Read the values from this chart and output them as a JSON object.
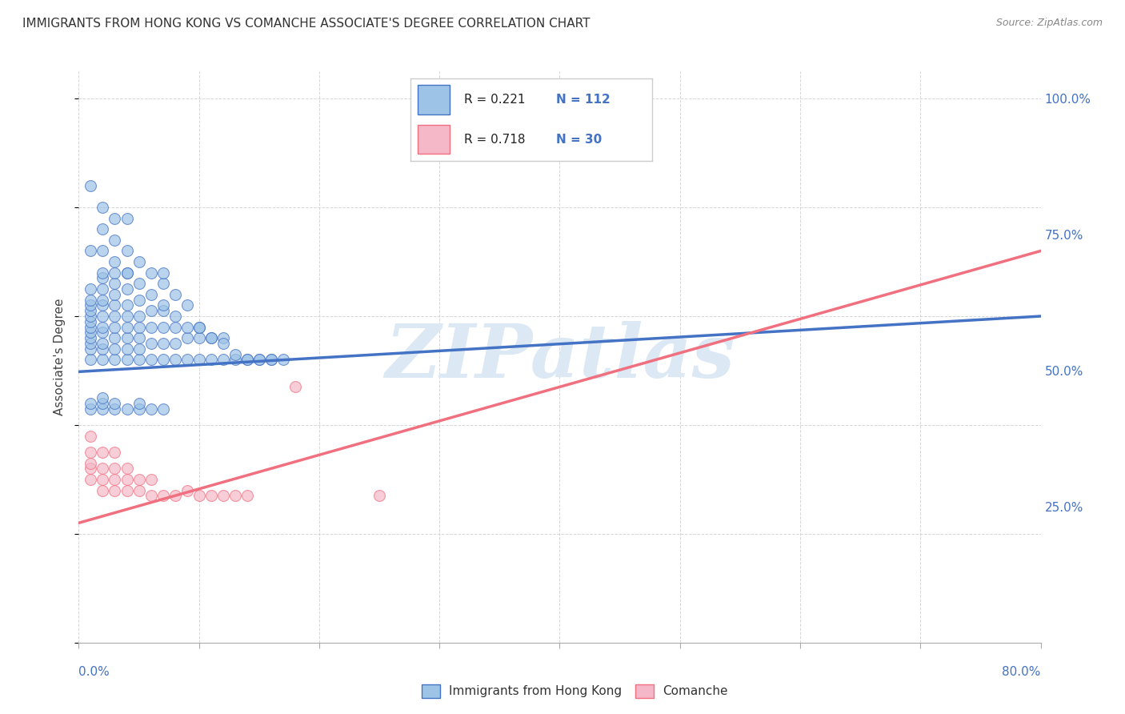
{
  "title": "IMMIGRANTS FROM HONG KONG VS COMANCHE ASSOCIATE'S DEGREE CORRELATION CHART",
  "source": "Source: ZipAtlas.com",
  "ylabel": "Associate's Degree",
  "ylabel_right_ticks": [
    "25.0%",
    "50.0%",
    "75.0%",
    "100.0%"
  ],
  "ylabel_right_vals": [
    0.25,
    0.5,
    0.75,
    1.0
  ],
  "bottom_legend": [
    "Immigrants from Hong Kong",
    "Comanche"
  ],
  "watermark": "ZIPatlas",
  "legend_r1": "R = 0.221",
  "legend_n1": "N = 112",
  "legend_r2": "R = 0.718",
  "legend_n2": "N = 30",
  "hk_x": [
    0.001,
    0.001,
    0.001,
    0.001,
    0.001,
    0.001,
    0.001,
    0.001,
    0.001,
    0.001,
    0.001,
    0.001,
    0.002,
    0.002,
    0.002,
    0.002,
    0.002,
    0.002,
    0.002,
    0.002,
    0.002,
    0.002,
    0.002,
    0.003,
    0.003,
    0.003,
    0.003,
    0.003,
    0.003,
    0.003,
    0.003,
    0.003,
    0.004,
    0.004,
    0.004,
    0.004,
    0.004,
    0.004,
    0.004,
    0.004,
    0.005,
    0.005,
    0.005,
    0.005,
    0.005,
    0.005,
    0.006,
    0.006,
    0.006,
    0.006,
    0.007,
    0.007,
    0.007,
    0.007,
    0.008,
    0.008,
    0.008,
    0.009,
    0.009,
    0.01,
    0.01,
    0.011,
    0.011,
    0.012,
    0.012,
    0.013,
    0.014,
    0.015,
    0.016,
    0.017,
    0.001,
    0.001,
    0.002,
    0.002,
    0.002,
    0.003,
    0.003,
    0.003,
    0.004,
    0.004,
    0.004,
    0.005,
    0.005,
    0.006,
    0.006,
    0.007,
    0.007,
    0.008,
    0.008,
    0.009,
    0.009,
    0.01,
    0.011,
    0.012,
    0.013,
    0.014,
    0.015,
    0.016,
    0.007,
    0.01,
    0.001,
    0.001,
    0.002,
    0.002,
    0.002,
    0.003,
    0.003,
    0.004,
    0.005,
    0.005,
    0.006,
    0.007
  ],
  "hk_y": [
    0.52,
    0.54,
    0.55,
    0.56,
    0.57,
    0.58,
    0.59,
    0.6,
    0.61,
    0.62,
    0.63,
    0.65,
    0.52,
    0.54,
    0.55,
    0.57,
    0.58,
    0.6,
    0.62,
    0.63,
    0.65,
    0.67,
    0.68,
    0.52,
    0.54,
    0.56,
    0.58,
    0.6,
    0.62,
    0.64,
    0.66,
    0.68,
    0.52,
    0.54,
    0.56,
    0.58,
    0.6,
    0.62,
    0.65,
    0.68,
    0.52,
    0.54,
    0.56,
    0.58,
    0.6,
    0.63,
    0.52,
    0.55,
    0.58,
    0.61,
    0.52,
    0.55,
    0.58,
    0.61,
    0.52,
    0.55,
    0.58,
    0.52,
    0.56,
    0.52,
    0.56,
    0.52,
    0.56,
    0.52,
    0.56,
    0.52,
    0.52,
    0.52,
    0.52,
    0.52,
    0.72,
    0.84,
    0.72,
    0.76,
    0.8,
    0.7,
    0.74,
    0.78,
    0.68,
    0.72,
    0.78,
    0.66,
    0.7,
    0.64,
    0.68,
    0.62,
    0.66,
    0.6,
    0.64,
    0.58,
    0.62,
    0.58,
    0.56,
    0.55,
    0.53,
    0.52,
    0.52,
    0.52,
    0.68,
    0.58,
    0.43,
    0.44,
    0.43,
    0.44,
    0.45,
    0.43,
    0.44,
    0.43,
    0.43,
    0.44,
    0.43,
    0.43
  ],
  "hk_line_x": [
    0.0,
    0.08
  ],
  "hk_line_y": [
    0.498,
    0.6
  ],
  "cm_x": [
    0.001,
    0.001,
    0.001,
    0.001,
    0.001,
    0.002,
    0.002,
    0.002,
    0.002,
    0.003,
    0.003,
    0.003,
    0.003,
    0.004,
    0.004,
    0.004,
    0.005,
    0.005,
    0.006,
    0.006,
    0.007,
    0.008,
    0.009,
    0.01,
    0.011,
    0.012,
    0.013,
    0.014,
    0.018,
    0.025
  ],
  "cm_y": [
    0.3,
    0.32,
    0.35,
    0.38,
    0.33,
    0.28,
    0.3,
    0.32,
    0.35,
    0.28,
    0.3,
    0.32,
    0.35,
    0.28,
    0.3,
    0.32,
    0.28,
    0.3,
    0.27,
    0.3,
    0.27,
    0.27,
    0.28,
    0.27,
    0.27,
    0.27,
    0.27,
    0.27,
    0.47,
    0.27
  ],
  "cm_line_x": [
    0.0,
    0.08
  ],
  "cm_line_y": [
    0.22,
    0.72
  ],
  "blue_color": "#4472c4",
  "blue_light": "#9dc3e6",
  "pink_color": "#f07080",
  "pink_light": "#f4b8c8",
  "grid_color": "#cccccc",
  "background_color": "#ffffff",
  "watermark_color": "#dce9f5",
  "xmin": 0.0,
  "xmax": 0.08,
  "ymin": 0.0,
  "ymax": 1.05
}
